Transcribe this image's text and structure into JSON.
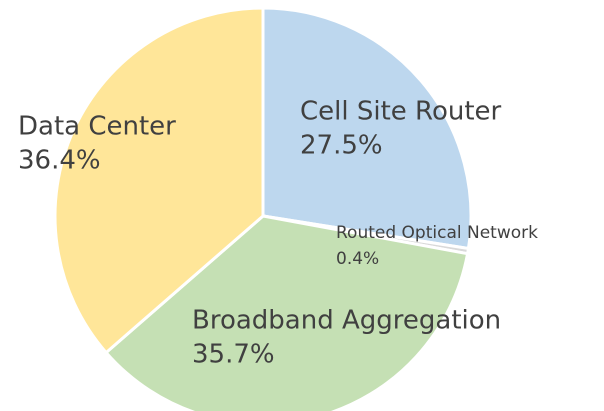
{
  "chart_data": {
    "type": "pie",
    "categories": [
      "Cell Site Router",
      "Routed Optical Network",
      "Broadband Aggregation",
      "Data Center"
    ],
    "values": [
      27.5,
      0.4,
      35.7,
      36.4
    ],
    "value_labels": [
      "27.5%",
      "0.4%",
      "35.7%",
      "36.4%"
    ],
    "colors": [
      "#bdd7ee",
      "#d9d9d9",
      "#c5e0b4",
      "#ffe699"
    ]
  }
}
